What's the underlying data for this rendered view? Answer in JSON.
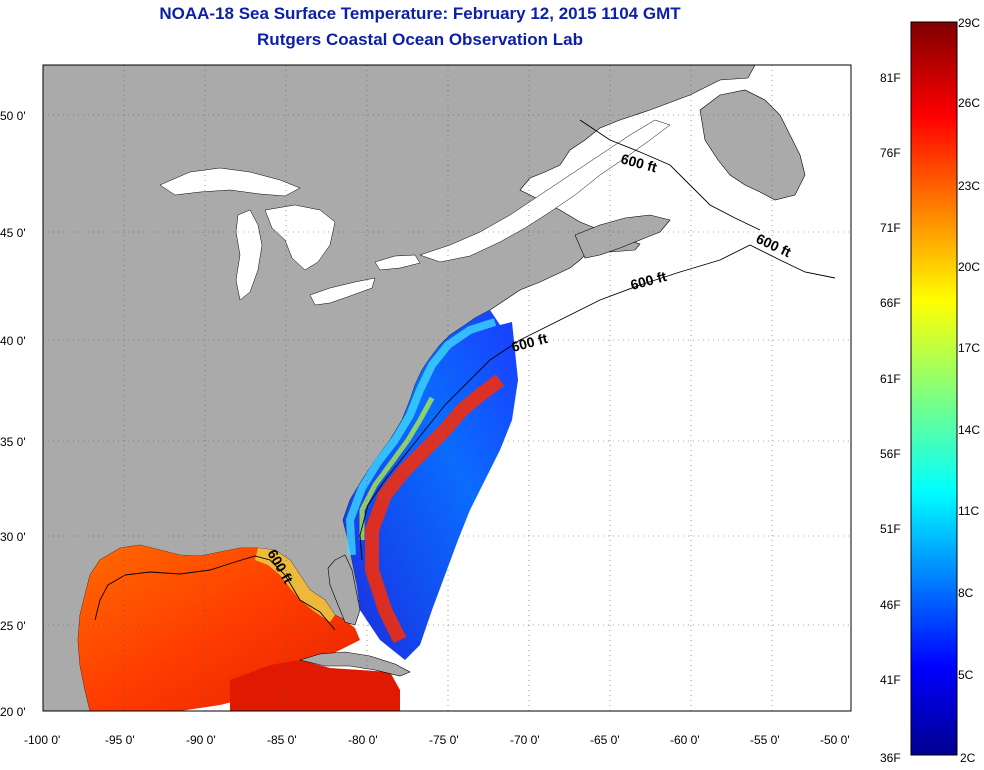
{
  "title": "NOAA-18 Sea Surface Temperature:  February 12, 2015 1104 GMT",
  "subtitle": "Rutgers Coastal Ocean Observation Lab",
  "map": {
    "lon_range": [
      -100,
      -50
    ],
    "lat_range": [
      20,
      52
    ],
    "lon_ticks": [
      "-100 0'",
      "-95 0'",
      "-90 0'",
      "-85 0'",
      "-80 0'",
      "-75 0'",
      "-70 0'",
      "-65 0'",
      "-60 0'",
      "-55 0'",
      "-50 0'"
    ],
    "lat_ticks": [
      "20 0'",
      "25 0'",
      "30 0'",
      "35 0'",
      "40 0'",
      "45 0'",
      "50 0'"
    ],
    "contour_labels": [
      "600 ft",
      "600 ft",
      "600 ft",
      "600 ft",
      "600 ft"
    ],
    "land_color": "#aaaaaa",
    "ocean_no_data_color": "#ffffff"
  },
  "colorbar": {
    "celsius_labels": [
      "29C",
      "26C",
      "23C",
      "20C",
      "17C",
      "14C",
      "11C",
      "8C",
      "5C",
      "2C"
    ],
    "fahrenheit_labels": [
      "81F",
      "76F",
      "71F",
      "66F",
      "61F",
      "56F",
      "51F",
      "46F",
      "41F",
      "36F"
    ],
    "colormap": "jet",
    "range_c": [
      2,
      29
    ]
  }
}
